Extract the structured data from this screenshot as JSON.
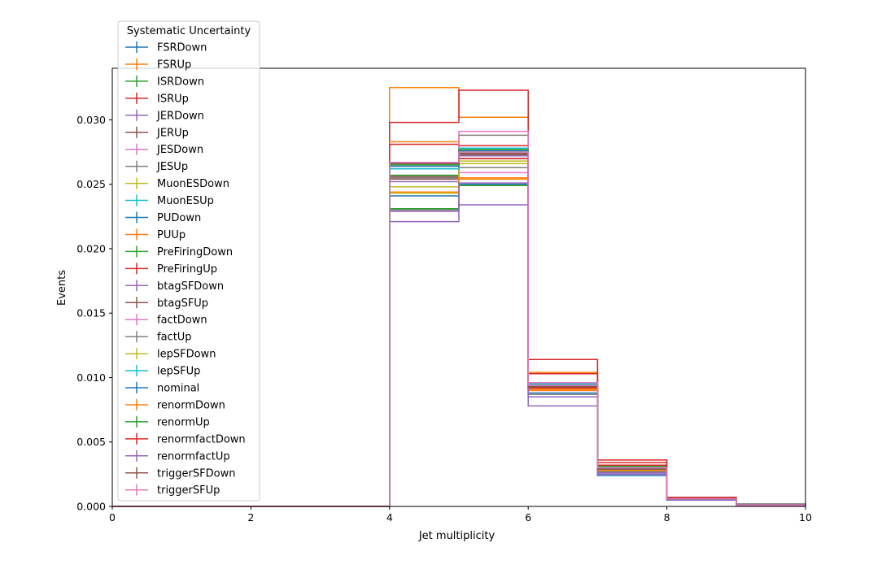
{
  "chart_data": {
    "type": "step-histogram",
    "xlabel": "Jet multiplicity",
    "ylabel": "Events",
    "xlim": [
      0,
      10
    ],
    "ylim": [
      0,
      0.034
    ],
    "xticks": [
      "0",
      "2",
      "4",
      "6",
      "8",
      "10"
    ],
    "yticks": [
      "0.000",
      "0.005",
      "0.010",
      "0.015",
      "0.020",
      "0.025",
      "0.030"
    ],
    "grid": false,
    "bin_edges": [
      0,
      1,
      2,
      3,
      4,
      5,
      6,
      7,
      8,
      9,
      10
    ],
    "legend": {
      "title": "Systematic Uncertainty",
      "placement": "top-left, above plot"
    },
    "series": [
      {
        "name": "FSRDown",
        "color": "#1f77b4",
        "values": [
          0,
          0,
          0,
          0,
          0.0244,
          0.0272,
          0.0093,
          0.0026,
          0.0006,
          0.0001
        ]
      },
      {
        "name": "FSRUp",
        "color": "#ff7f0e",
        "values": [
          0,
          0,
          0,
          0,
          0.0325,
          0.0302,
          0.0104,
          0.0031,
          0.0006,
          0.0001
        ]
      },
      {
        "name": "ISRDown",
        "color": "#2ca02c",
        "values": [
          0,
          0,
          0,
          0,
          0.0257,
          0.0275,
          0.0092,
          0.0029,
          0.0006,
          0.0001
        ]
      },
      {
        "name": "ISRUp",
        "color": "#d62728",
        "values": [
          0,
          0,
          0,
          0,
          0.0298,
          0.0323,
          0.0114,
          0.0036,
          0.0007,
          0.0001
        ]
      },
      {
        "name": "JERDown",
        "color": "#9467bd",
        "values": [
          0,
          0,
          0,
          0,
          0.0252,
          0.0272,
          0.0091,
          0.0028,
          0.0006,
          0.0001
        ]
      },
      {
        "name": "JERUp",
        "color": "#8c564b",
        "values": [
          0,
          0,
          0,
          0,
          0.0256,
          0.0274,
          0.0092,
          0.0029,
          0.0006,
          0.0001
        ]
      },
      {
        "name": "JESDown",
        "color": "#e377c2",
        "values": [
          0,
          0,
          0,
          0,
          0.0267,
          0.0259,
          0.009,
          0.0027,
          0.0005,
          0.0001
        ]
      },
      {
        "name": "JESUp",
        "color": "#7f7f7f",
        "values": [
          0,
          0,
          0,
          0,
          0.0255,
          0.0288,
          0.0095,
          0.0031,
          0.0007,
          0.0002
        ]
      },
      {
        "name": "MuonESDown",
        "color": "#bcbd22",
        "values": [
          0,
          0,
          0,
          0,
          0.0248,
          0.0266,
          0.0091,
          0.0028,
          0.0006,
          0.0001
        ]
      },
      {
        "name": "MuonESUp",
        "color": "#17becf",
        "values": [
          0,
          0,
          0,
          0,
          0.0262,
          0.0278,
          0.0095,
          0.003,
          0.0006,
          0.0001
        ]
      },
      {
        "name": "PUDown",
        "color": "#1f77b4",
        "values": [
          0,
          0,
          0,
          0,
          0.0241,
          0.025,
          0.0088,
          0.0024,
          0.0005,
          0.0001
        ]
      },
      {
        "name": "PUUp",
        "color": "#ff7f0e",
        "values": [
          0,
          0,
          0,
          0,
          0.0283,
          0.0254,
          0.009,
          0.0027,
          0.0006,
          0.0001
        ]
      },
      {
        "name": "PreFiringDown",
        "color": "#2ca02c",
        "values": [
          0,
          0,
          0,
          0,
          0.0231,
          0.0249,
          0.0085,
          0.0029,
          0.0006,
          0.0001
        ]
      },
      {
        "name": "PreFiringUp",
        "color": "#d62728",
        "values": [
          0,
          0,
          0,
          0,
          0.0281,
          0.028,
          0.0103,
          0.0034,
          0.0007,
          0.0001
        ]
      },
      {
        "name": "btagSFDown",
        "color": "#9467bd",
        "values": [
          0,
          0,
          0,
          0,
          0.0221,
          0.0234,
          0.0078,
          0.0025,
          0.0005,
          0.0001
        ]
      },
      {
        "name": "btagSFUp",
        "color": "#8c564b",
        "values": [
          0,
          0,
          0,
          0,
          0.0254,
          0.027,
          0.0093,
          0.0029,
          0.0006,
          0.0001
        ]
      },
      {
        "name": "factDown",
        "color": "#e377c2",
        "values": [
          0,
          0,
          0,
          0,
          0.0265,
          0.0291,
          0.0096,
          0.0032,
          0.0007,
          0.0001
        ]
      },
      {
        "name": "factUp",
        "color": "#7f7f7f",
        "values": [
          0,
          0,
          0,
          0,
          0.023,
          0.0263,
          0.0087,
          0.0027,
          0.0006,
          0.0001
        ]
      },
      {
        "name": "lepSFDown",
        "color": "#bcbd22",
        "values": [
          0,
          0,
          0,
          0,
          0.0243,
          0.0268,
          0.0092,
          0.0028,
          0.0006,
          0.0001
        ]
      },
      {
        "name": "lepSFUp",
        "color": "#17becf",
        "values": [
          0,
          0,
          0,
          0,
          0.0262,
          0.0276,
          0.0094,
          0.003,
          0.0006,
          0.0001
        ]
      },
      {
        "name": "nominal",
        "color": "#1f77b4",
        "values": [
          0,
          0,
          0,
          0,
          0.0264,
          0.0276,
          0.0093,
          0.0029,
          0.0006,
          0.0001
        ]
      },
      {
        "name": "renormDown",
        "color": "#ff7f0e",
        "values": [
          0,
          0,
          0,
          0,
          0.0244,
          0.0255,
          0.0091,
          0.0028,
          0.0006,
          0.0001
        ]
      },
      {
        "name": "renormUp",
        "color": "#2ca02c",
        "values": [
          0,
          0,
          0,
          0,
          0.0265,
          0.0277,
          0.0094,
          0.0031,
          0.0007,
          0.0001
        ]
      },
      {
        "name": "renormfactDown",
        "color": "#d62728",
        "values": [
          0,
          0,
          0,
          0,
          0.0267,
          0.027,
          0.0092,
          0.0032,
          0.0007,
          0.0001
        ]
      },
      {
        "name": "renormfactUp",
        "color": "#9467bd",
        "values": [
          0,
          0,
          0,
          0,
          0.0229,
          0.0251,
          0.0085,
          0.0026,
          0.0005,
          0.0001
        ]
      },
      {
        "name": "triggerSFDown",
        "color": "#8c564b",
        "values": [
          0,
          0,
          0,
          0,
          0.0266,
          0.0273,
          0.0093,
          0.0029,
          0.0006,
          0.0001
        ]
      },
      {
        "name": "triggerSFUp",
        "color": "#e377c2",
        "values": [
          0,
          0,
          0,
          0,
          0.0267,
          0.0275,
          0.0094,
          0.003,
          0.0006,
          0.0001
        ]
      }
    ]
  }
}
